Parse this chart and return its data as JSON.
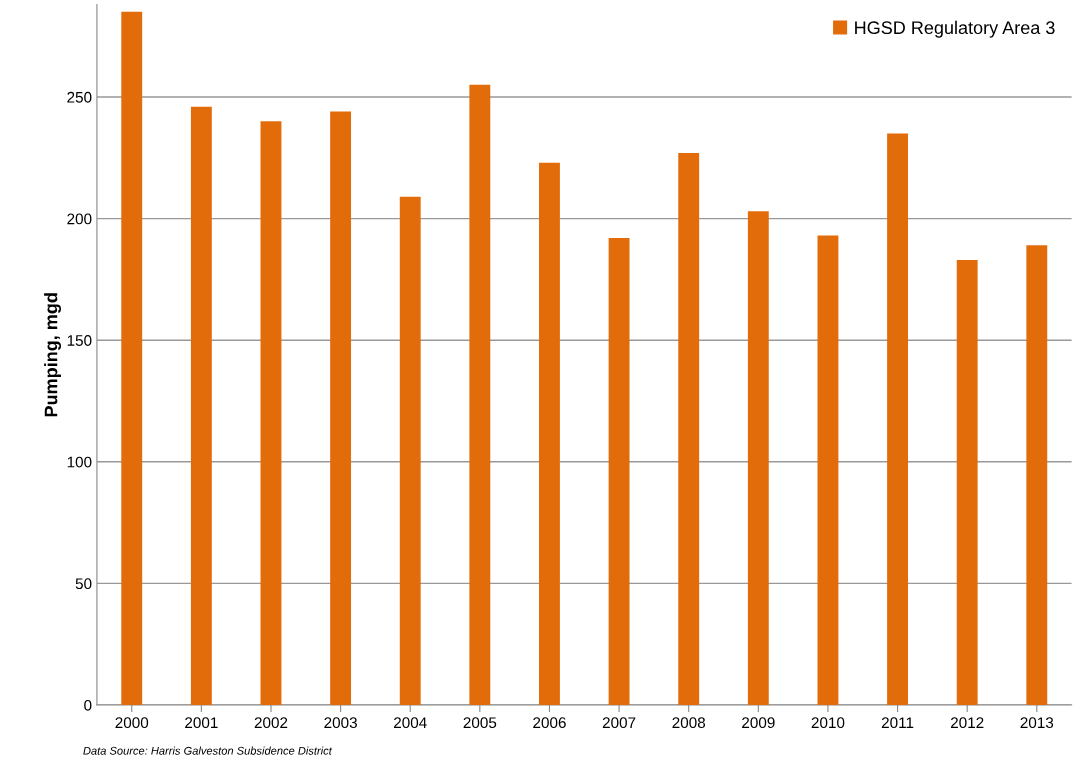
{
  "chart_data": {
    "type": "bar",
    "ylabel": "Pumping, mgd",
    "categories": [
      "2000",
      "2001",
      "2002",
      "2003",
      "2004",
      "2005",
      "2006",
      "2007",
      "2008",
      "2009",
      "2010",
      "2011",
      "2012",
      "2013"
    ],
    "series": [
      {
        "name": "HGSD Regulatory Area 3",
        "color": "#e36c0a",
        "values": [
          285,
          246,
          240,
          244,
          209,
          255,
          223,
          192,
          227,
          203,
          193,
          235,
          183,
          189
        ]
      }
    ],
    "ylim": [
      0,
      288
    ],
    "yticks": [
      0,
      50,
      100,
      150,
      200,
      250
    ],
    "grid": "y",
    "legend": "top right",
    "annotations": [
      "Data Source: Harris Galveston Subsidence District"
    ]
  }
}
